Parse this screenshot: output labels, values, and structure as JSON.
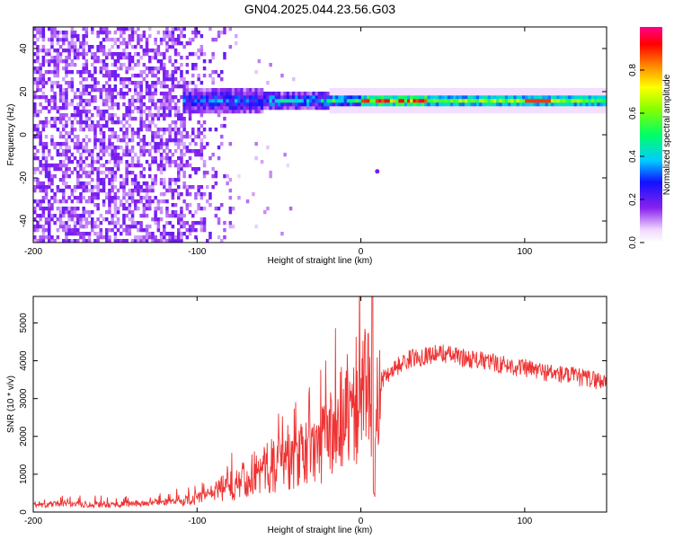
{
  "title": "GN04.2025.044.23.56.G03",
  "chart_data": [
    {
      "type": "heatmap",
      "xlabel": "Height of straight line (km)",
      "ylabel": "Frequency (Hz)",
      "xlim": [
        -200,
        150
      ],
      "ylim": [
        -50,
        50
      ],
      "x_ticks": [
        -200,
        -100,
        0,
        100
      ],
      "y_ticks": [
        -40,
        -20,
        0,
        20,
        40
      ],
      "colorbar": {
        "label": "Normalized spectral amplitude",
        "range": [
          0,
          1
        ],
        "ticks": [
          0.0,
          0.2,
          0.4,
          0.6,
          0.8
        ],
        "tick_labels": [
          "0.0",
          "0.2",
          "0.4",
          "0.6",
          "0.8"
        ]
      },
      "features": {
        "carrier_frequency_hz": 15,
        "carrier_visible_from_km": -110,
        "noise_region_km": [
          -200,
          -80
        ],
        "isolated_point": {
          "x_km": 10,
          "freq_hz": -17
        },
        "max_amplitude_near_km": [
          0,
          110
        ]
      }
    },
    {
      "type": "line",
      "xlabel": "Height of straight line (km)",
      "ylabel": "SNR (10 * v/v)",
      "xlim": [
        -200,
        150
      ],
      "ylim": [
        0,
        5700
      ],
      "x_ticks": [
        -200,
        -100,
        0,
        100
      ],
      "y_ticks": [
        0,
        1000,
        2000,
        3000,
        4000,
        5000
      ],
      "series": [
        {
          "color": "#ee3333",
          "x": [
            -200,
            -150,
            -120,
            -100,
            -90,
            -80,
            -70,
            -60,
            -50,
            -40,
            -30,
            -20,
            -10,
            0,
            5,
            8,
            10,
            15,
            20,
            30,
            40,
            50,
            60,
            80,
            100,
            120,
            150
          ],
          "y": [
            200,
            200,
            250,
            350,
            500,
            700,
            900,
            1100,
            1300,
            1400,
            1600,
            2000,
            2700,
            3200,
            3400,
            400,
            3300,
            3600,
            3800,
            4050,
            4150,
            4200,
            4100,
            3950,
            3800,
            3650,
            3450
          ]
        }
      ],
      "annotations": {
        "spike": {
          "x_km": 7,
          "snr": 5700
        },
        "dip": {
          "x_km": 8,
          "snr": 400
        }
      }
    }
  ]
}
